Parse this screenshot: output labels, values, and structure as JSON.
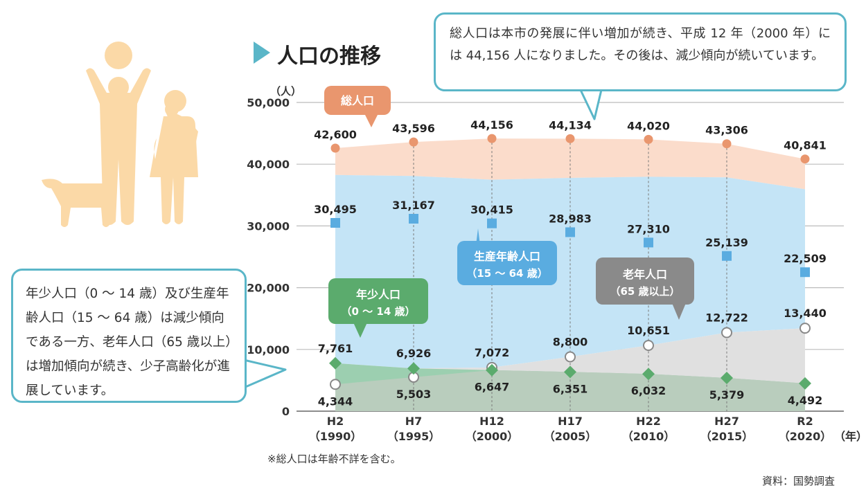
{
  "title": "人口の推移",
  "callout_top": "総人口は本市の発展に伴い増加が続き、平成 12 年（2000 年）には 44,156 人になりました。その後は、減少傾向が続いています。",
  "callout_left": "年少人口（0 ～ 14 歳）及び生産年齢人口（15 ～ 64 歳）は減少傾向である一方、老年人口（65 歳以上）は増加傾向が続き、少子高齢化が進展しています。",
  "note": "※総人口は年齢不詳を含む。",
  "source": "資料：国勢調査",
  "colors": {
    "total": "#e9966e",
    "working": "#5aace0",
    "young": "#5bab6d",
    "elderly": "#8a8a8a",
    "accent": "#5ab6c8",
    "icon": "#fbd9a7"
  },
  "chart_data": {
    "type": "area",
    "ylabel": "（人）",
    "ylim": [
      0,
      50000
    ],
    "yticks": [
      0,
      10000,
      20000,
      30000,
      40000,
      50000
    ],
    "ytick_labels": [
      "0",
      "10,000",
      "20,000",
      "30,000",
      "40,000",
      "50,000"
    ],
    "xunit": "（年）",
    "categories": [
      {
        "era": "H2",
        "year": "（1990）"
      },
      {
        "era": "H7",
        "year": "（1995）"
      },
      {
        "era": "H12",
        "year": "（2000）"
      },
      {
        "era": "H17",
        "year": "（2005）"
      },
      {
        "era": "H22",
        "year": "（2010）"
      },
      {
        "era": "H27",
        "year": "（2015）"
      },
      {
        "era": "R2",
        "year": "（2020）"
      }
    ],
    "series": [
      {
        "key": "total",
        "name": "総人口",
        "values": [
          42600,
          43596,
          44156,
          44134,
          44020,
          43306,
          40841
        ],
        "labels": [
          "42,600",
          "43,596",
          "44,156",
          "44,134",
          "44,020",
          "43,306",
          "40,841"
        ]
      },
      {
        "key": "working",
        "name": "生産年齢人口",
        "sub": "（15 ～ 64 歳）",
        "values": [
          30495,
          31167,
          30415,
          28983,
          27310,
          25139,
          22509
        ],
        "labels": [
          "30,495",
          "31,167",
          "30,415",
          "28,983",
          "27,310",
          "25,139",
          "22,509"
        ]
      },
      {
        "key": "elderly",
        "name": "老年人口",
        "sub": "（65 歳以上）",
        "values": [
          4344,
          5503,
          7072,
          8800,
          10651,
          12722,
          13440
        ],
        "labels": [
          "4,344",
          "5,503",
          "7,072",
          "8,800",
          "10,651",
          "12,722",
          "13,440"
        ]
      },
      {
        "key": "young",
        "name": "年少人口",
        "sub": "（0 ～ 14 歳）",
        "values": [
          7761,
          6926,
          6647,
          6351,
          6032,
          5379,
          4492
        ],
        "labels": [
          "7,761",
          "6,926",
          "6,647",
          "6,351",
          "6,032",
          "5,379",
          "4,492"
        ]
      }
    ]
  }
}
